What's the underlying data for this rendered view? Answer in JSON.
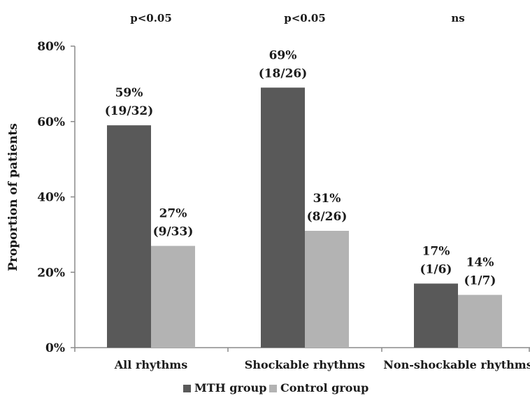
{
  "chart_data": {
    "type": "bar",
    "title": "",
    "xlabel": "",
    "ylabel": "Proportion of patients",
    "ylim": [
      0,
      80
    ],
    "yticks": [
      "0%",
      "20%",
      "40%",
      "60%",
      "80%"
    ],
    "categories": [
      "All rhythms",
      "Shockable rhythms",
      "Non-shockable rhythms"
    ],
    "series": [
      {
        "name": "MTH group",
        "color": "#595959",
        "values": [
          59,
          69,
          17
        ],
        "labels": [
          [
            "59%",
            "(19/32)"
          ],
          [
            "69%",
            "(18/26)"
          ],
          [
            "17%",
            "(1/6)"
          ]
        ]
      },
      {
        "name": "Control group",
        "color": "#b3b3b3",
        "values": [
          27,
          31,
          14
        ],
        "labels": [
          [
            "27%",
            "(9/33)"
          ],
          [
            "31%",
            "(8/26)"
          ],
          [
            "14%",
            "(1/7)"
          ]
        ]
      }
    ],
    "p_values": [
      "p<0.05",
      "p<0.05",
      "ns"
    ],
    "legend": "bottom",
    "grid": false
  }
}
